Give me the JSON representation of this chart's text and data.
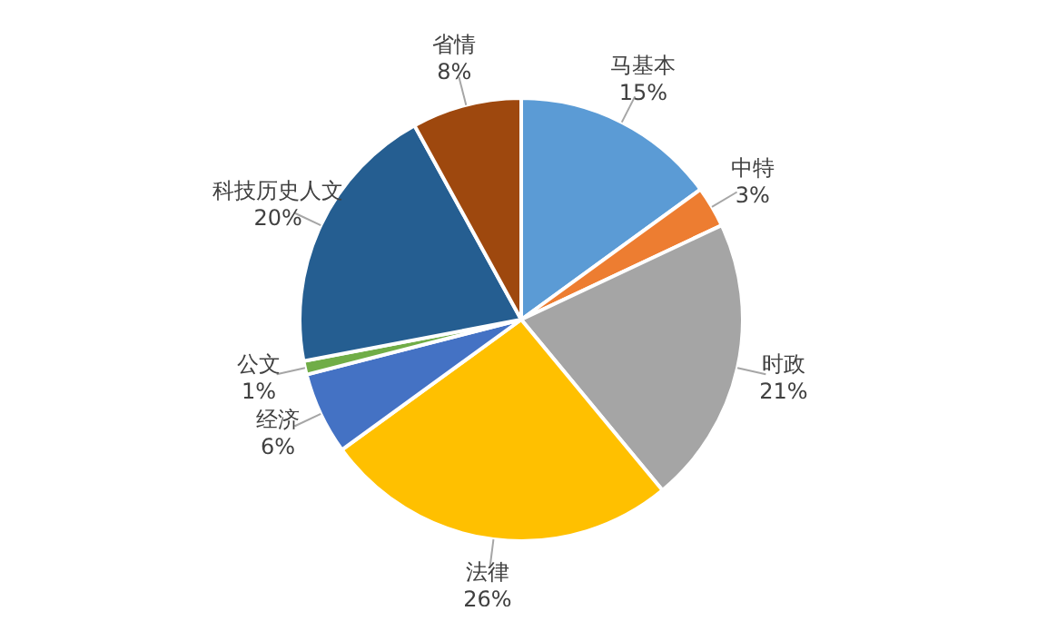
{
  "chart_data": {
    "type": "pie",
    "categories": [
      "马基本",
      "中特",
      "时政",
      "法律",
      "经济",
      "公文",
      "科技历史人文",
      "省情"
    ],
    "values": [
      15,
      3,
      21,
      26,
      6,
      1,
      20,
      8
    ],
    "value_labels": [
      "15%",
      "3%",
      "21%",
      "26%",
      "6%",
      "1%",
      "20%",
      "8%"
    ],
    "colors": [
      "#5b9bd5",
      "#ed7d31",
      "#a5a5a5",
      "#ffc000",
      "#4472c4",
      "#70ad47",
      "#255e91",
      "#9e480e"
    ],
    "legend": false
  }
}
